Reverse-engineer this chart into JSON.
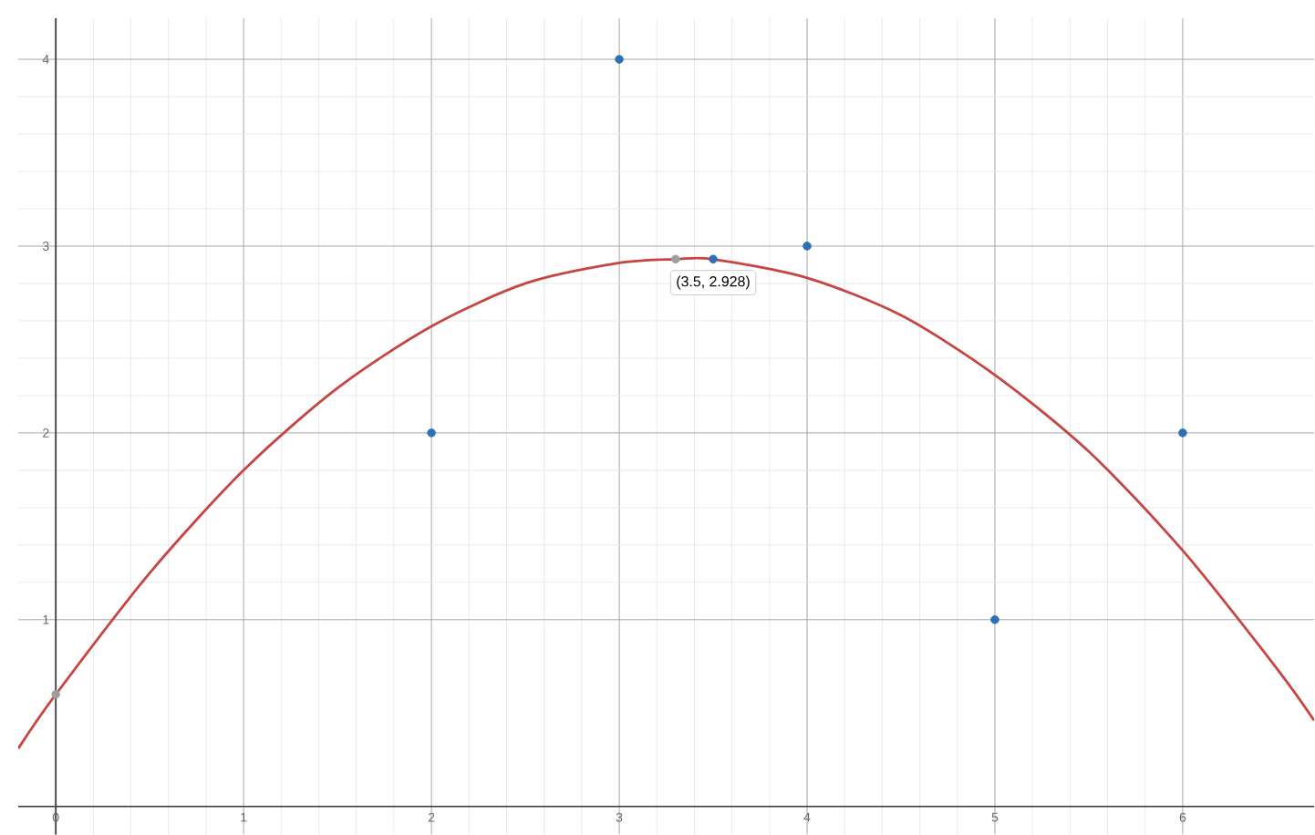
{
  "chart_data": {
    "type": "scatter",
    "xlim": [
      -0.2,
      6.7
    ],
    "ylim": [
      -0.15,
      4.22
    ],
    "xticks": [
      0,
      1,
      2,
      3,
      4,
      5,
      6
    ],
    "yticks": [
      1,
      2,
      3,
      4
    ],
    "grid": true,
    "series": [
      {
        "type": "line",
        "marker": "none",
        "color": "#c74440",
        "x": [
          -0.2,
          0,
          0.5,
          1,
          1.5,
          2,
          2.5,
          3,
          3.3,
          3.5,
          4,
          4.5,
          5,
          5.5,
          6,
          6.5,
          6.7
        ],
        "values": [
          0.31,
          0.6,
          1.25,
          1.8,
          2.24,
          2.57,
          2.8,
          2.91,
          2.93,
          2.93,
          2.83,
          2.63,
          2.31,
          1.9,
          1.37,
          0.74,
          0.46
        ]
      },
      {
        "marker": "circle",
        "color": "#9e9e9e",
        "x": [
          0,
          3.3
        ],
        "values": [
          0.6,
          2.93
        ]
      },
      {
        "marker": "circle",
        "color": "#2d70b3",
        "x": [
          2,
          3,
          4,
          5,
          6,
          3.5
        ],
        "values": [
          2,
          4,
          3,
          1,
          2,
          2.93
        ]
      }
    ],
    "annotations": [
      {
        "text": "(3.5, 2.928)",
        "x": 3.5,
        "y": 2.93
      }
    ]
  }
}
